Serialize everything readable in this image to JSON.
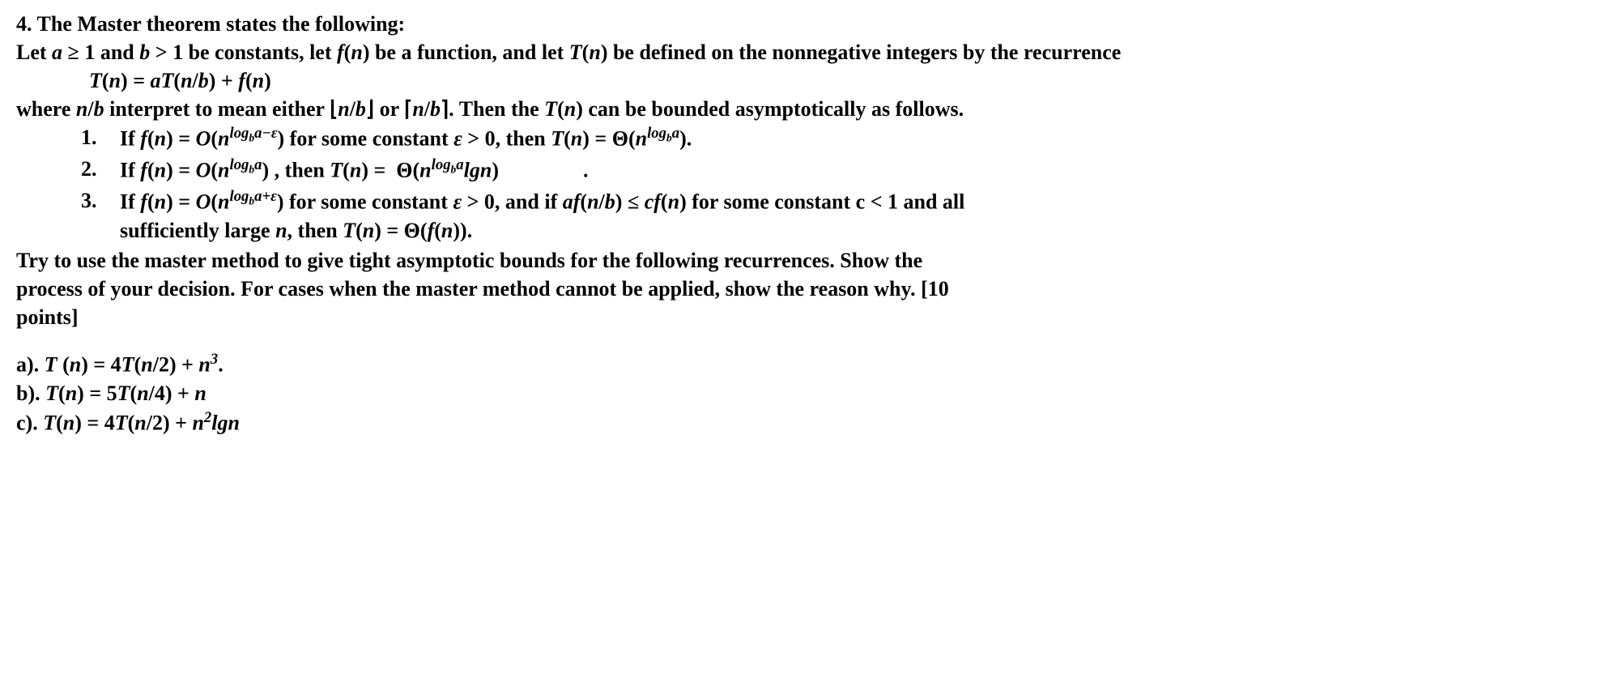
{
  "q_number": "4.",
  "title_line": "The Master theorem states the following:",
  "line_let": "Let a ≥ 1 and b > 1 be constants, let f(n) be a function, and let T(n) be defined on the nonnegative integers by the recurrence",
  "recurrence": "T(n) = aT(n/b) + f(n)",
  "line_where": "where n/b interpret to mean either ⌊n/b⌋ or ⌈n/b⌉. Then the T(n) can be bounded asymptotically as follows.",
  "cases": {
    "c1_num": "1.",
    "c1": "If f(n) = O(n^(log_b a − ε)) for some constant ε > 0, then T(n) = Θ(n^(log_b a)).",
    "c2_num": "2.",
    "c2": "If f(n) = O(n^(log_b a)) , then T(n) =  Θ(n^(log_b a) lg n)",
    "c3_num": "3.",
    "c3_a": "If f(n) = O(n^(log_b a + ε)) for some constant ε > 0, and if af(n/b) ≤ cf(n) for some constant c < 1 and all",
    "c3_b": "sufficiently large n, then T(n) = Θ(f(n))."
  },
  "instruction_a": "Try to use the master method to give tight asymptotic bounds for the following recurrences. Show the",
  "instruction_b": "process of your decision. For cases when the master method cannot be applied, show the reason why. [10",
  "instruction_c": "points]",
  "parts": {
    "a_label": "a).",
    "a": "T (n) = 4T(n/2) + n³.",
    "b_label": "b).",
    "b": "T(n) = 5T(n/4) + n",
    "c_label": "c).",
    "c": "T(n) = 4T(n/2) + n²lgn"
  }
}
